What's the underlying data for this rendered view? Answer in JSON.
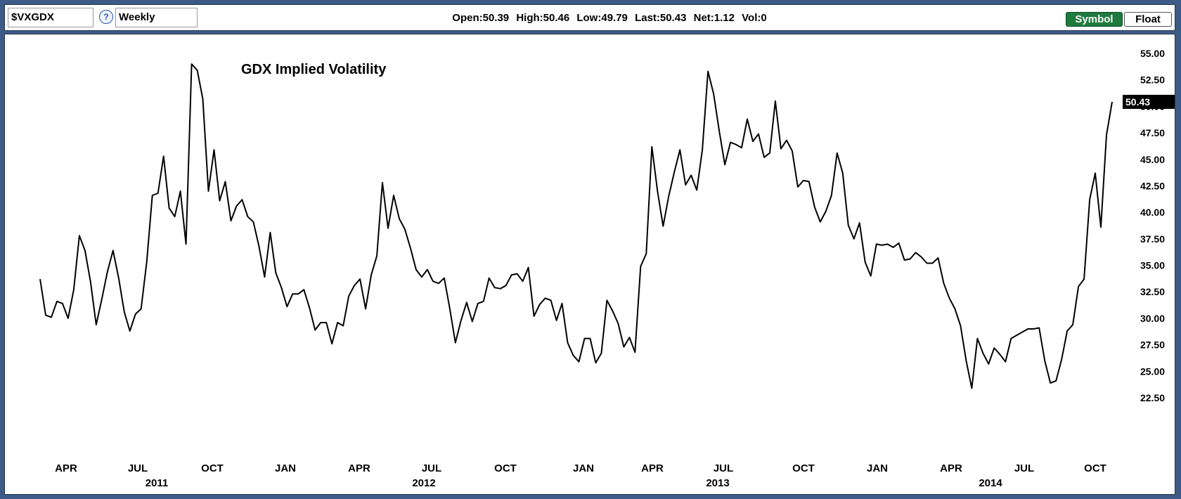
{
  "toolbar": {
    "symbol": "$VXGDX",
    "help_icon": "?",
    "period": "Weekly",
    "quote": {
      "open": "Open:50.39",
      "high": "High:50.46",
      "low": "Low:49.79",
      "last": "Last:50.43",
      "net": "Net:1.12",
      "vol": "Vol:0"
    },
    "symbol_button": "Symbol",
    "float_button": "Float",
    "accent_color": "#1e7a3f"
  },
  "chart_data": {
    "type": "line",
    "title": "GDX Implied Volatility",
    "xlabel": "",
    "ylabel": "",
    "ylim": [
      21.5,
      56.5
    ],
    "y_ticks": [
      "55.00",
      "52.50",
      "50.00",
      "47.50",
      "45.00",
      "42.50",
      "40.00",
      "37.50",
      "35.00",
      "32.50",
      "30.00",
      "27.50",
      "25.00",
      "22.50"
    ],
    "last_value_label": "50.43",
    "x_month_labels": [
      "APR",
      "JUL",
      "OCT",
      "JAN",
      "APR",
      "JUL",
      "OCT",
      "JAN",
      "APR",
      "JUL",
      "OCT",
      "JAN",
      "APR",
      "JUL",
      "OCT"
    ],
    "x_year_labels": [
      "2011",
      "2012",
      "2013",
      "2014"
    ],
    "grid": false,
    "line_color": "#000000",
    "series": [
      {
        "values": [
          33.7,
          30.3,
          30.1,
          31.6,
          31.4,
          30.0,
          32.7,
          37.8,
          36.4,
          33.4,
          29.4,
          31.8,
          34.4,
          36.4,
          33.8,
          30.6,
          28.8,
          30.4,
          30.9,
          35.3,
          41.6,
          41.8,
          45.3,
          40.4,
          39.6,
          42.0,
          37.0,
          54.0,
          53.4,
          50.7,
          42.0,
          45.9,
          41.1,
          42.9,
          39.2,
          40.6,
          41.2,
          39.6,
          39.1,
          36.8,
          33.9,
          38.1,
          34.3,
          32.9,
          31.1,
          32.3,
          32.3,
          32.7,
          31.0,
          28.9,
          29.6,
          29.6,
          27.6,
          29.6,
          29.3,
          32.1,
          33.1,
          33.7,
          30.9,
          34.1,
          35.9,
          42.8,
          38.5,
          41.6,
          39.4,
          38.4,
          36.6,
          34.6,
          33.9,
          34.6,
          33.5,
          33.3,
          33.8,
          30.9,
          27.7,
          29.8,
          31.5,
          29.7,
          31.4,
          31.6,
          33.8,
          32.9,
          32.8,
          33.1,
          34.1,
          34.2,
          33.5,
          34.8,
          30.2,
          31.3,
          31.9,
          31.7,
          29.8,
          31.4,
          27.7,
          26.5,
          25.9,
          28.1,
          28.1,
          25.8,
          26.7,
          31.7,
          30.7,
          29.5,
          27.3,
          28.2,
          26.8,
          34.9,
          36.1,
          46.2,
          42.0,
          38.7,
          41.5,
          43.8,
          45.9,
          42.6,
          43.5,
          42.1,
          45.9,
          53.3,
          51.2,
          47.7,
          44.5,
          46.6,
          46.4,
          46.1,
          48.8,
          46.7,
          47.4,
          45.2,
          45.6,
          50.5,
          46.0,
          46.8,
          45.8,
          42.4,
          43.0,
          42.9,
          40.5,
          39.1,
          40.1,
          41.6,
          45.6,
          43.7,
          38.8,
          37.5,
          39.0,
          35.3,
          34.0,
          37.0,
          36.9,
          37.0,
          36.7,
          37.1,
          35.5,
          35.6,
          36.2,
          35.8,
          35.2,
          35.2,
          35.7,
          33.3,
          31.9,
          30.9,
          29.3,
          26.0,
          23.4,
          28.1,
          26.7,
          25.7,
          27.2,
          26.6,
          25.9,
          28.1,
          28.4,
          28.7,
          29.0,
          29.0,
          29.1,
          26.0,
          23.9,
          24.1,
          26.1,
          28.8,
          29.4,
          33.0,
          33.7,
          41.2,
          43.7,
          38.6,
          47.3,
          50.43
        ]
      }
    ]
  }
}
